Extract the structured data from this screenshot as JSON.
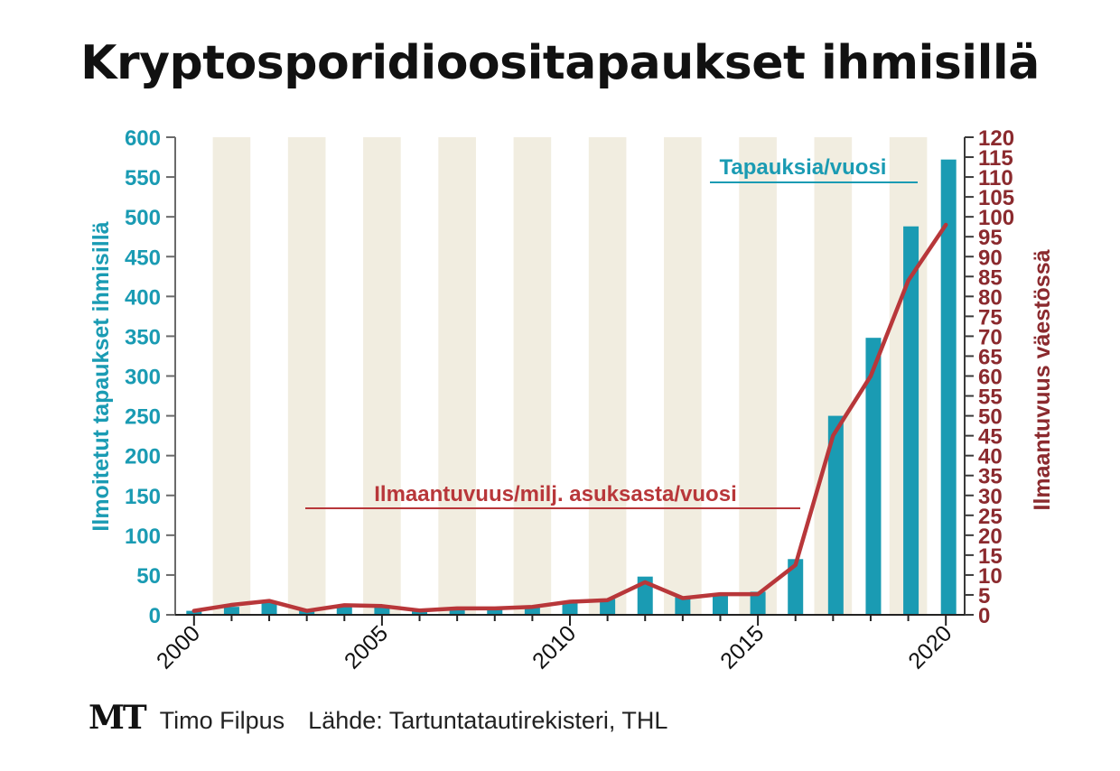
{
  "title": "Kryptosporidioositapaukset ihmisillä",
  "footer": {
    "logo": "MT",
    "author": "Timo Filpus",
    "source": "Lähde: Tartuntatautirekisteri, THL"
  },
  "colors": {
    "bars": "#1a9bb3",
    "line": "#b8373a",
    "left_axis": "#1a9bb3",
    "right_axis": "#8b2a2e",
    "stripe": "#f1ede0"
  },
  "chart_data": {
    "type": "bar",
    "x": [
      2000,
      2001,
      2002,
      2003,
      2004,
      2005,
      2006,
      2007,
      2008,
      2009,
      2010,
      2011,
      2012,
      2013,
      2014,
      2015,
      2016,
      2017,
      2018,
      2019,
      2020
    ],
    "x_tick_labels": [
      "2000",
      "2005",
      "2010",
      "2015",
      "2020"
    ],
    "series": [
      {
        "name": "Tapauksia/vuosi",
        "type": "bar",
        "axis": "left",
        "values": [
          5,
          10,
          16,
          5,
          12,
          11,
          6,
          8,
          8,
          10,
          17,
          20,
          48,
          22,
          27,
          29,
          70,
          250,
          348,
          488,
          572
        ]
      },
      {
        "name": "Ilmaantuvuus/milj. asuksasta/vuosi",
        "type": "line",
        "axis": "right",
        "values": [
          1,
          2.5,
          3.5,
          1,
          2.4,
          2.2,
          1.1,
          1.6,
          1.6,
          2.0,
          3.3,
          3.7,
          8.2,
          4.2,
          5.2,
          5.2,
          12.5,
          45,
          60,
          84,
          98
        ]
      }
    ],
    "ylabel_left": "Ilmoitetut tapaukset ihmisillä",
    "ylabel_right": "Ilmaantuvuus väestössä",
    "ylim_left": [
      0,
      600
    ],
    "yticks_left": [
      0,
      50,
      100,
      150,
      200,
      250,
      300,
      350,
      400,
      450,
      500,
      550,
      600
    ],
    "ylim_right": [
      0,
      120
    ],
    "yticks_right": [
      0,
      5,
      10,
      15,
      20,
      25,
      30,
      35,
      40,
      45,
      50,
      55,
      60,
      65,
      70,
      75,
      80,
      85,
      90,
      95,
      100,
      105,
      110,
      115,
      120
    ],
    "grid": false,
    "background": "alternating vertical stripes"
  }
}
